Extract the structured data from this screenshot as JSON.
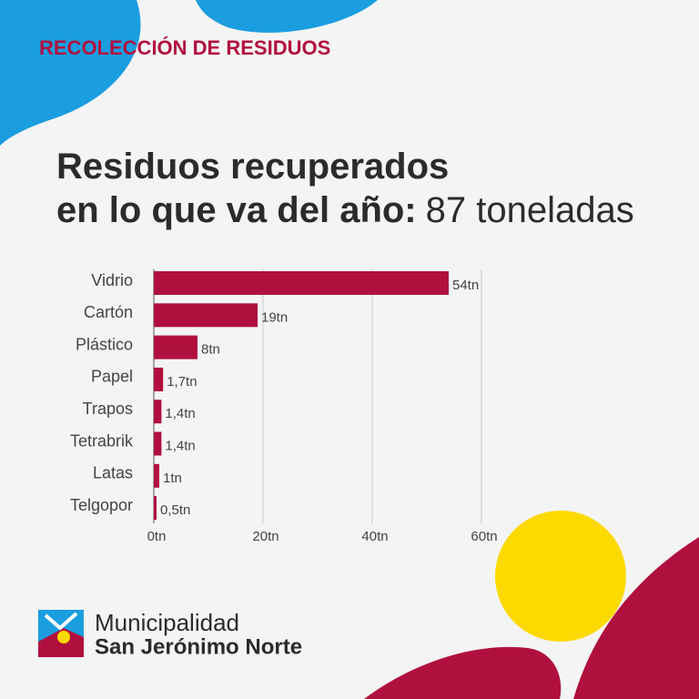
{
  "header": "RECOLECCIÓN DE RESIDUOS",
  "title_bold": "Residuos recuperados en lo que va del año:",
  "title_rest": "87 toneladas",
  "logo": {
    "line1": "Municipalidad",
    "line2": "San Jerónimo Norte"
  },
  "chart_data": {
    "type": "hbar",
    "categories": [
      "Vidrio",
      "Cartón",
      "Plástico",
      "Papel",
      "Trapos",
      "Tetrabrik",
      "Latas",
      "Telgopor"
    ],
    "values": [
      54,
      19,
      8,
      1.7,
      1.4,
      1.4,
      1,
      0.5
    ],
    "value_labels": [
      "54tn",
      "19tn",
      "8tn",
      "1,7tn",
      "1,4tn",
      "1,4tn",
      "1tn",
      "0,5tn"
    ],
    "color": "#b0103e",
    "xlim": [
      0,
      60
    ],
    "xticks": [
      {
        "value": 0,
        "label": "0tn"
      },
      {
        "value": 20,
        "label": "20tn"
      },
      {
        "value": 40,
        "label": "40tn"
      },
      {
        "value": 60,
        "label": "60tn"
      }
    ],
    "grid": true
  }
}
